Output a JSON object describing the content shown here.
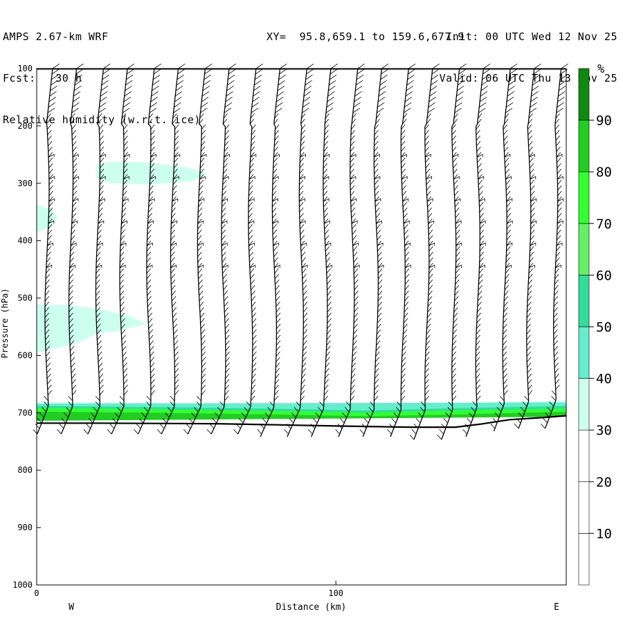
{
  "header": {
    "left": [
      "AMPS 2.67-km WRF",
      "Fcst:   30 h",
      "Relative humidity (w.r.t. ice)"
    ],
    "right": [
      "Init: 00 UTC Wed 12 Nov 25",
      "Valid: 06 UTC Thu 13 Nov 25"
    ],
    "xy": "XY=  95.8,659.1 to 159.6,677.9"
  },
  "chart_data": {
    "type": "heatmap",
    "title": "Relative humidity (w.r.t. ice)",
    "xlabel": "Distance (km)",
    "ylabel": "Pressure (hPa)",
    "xlim": [
      0,
      177
    ],
    "ylim": [
      1000,
      100
    ],
    "x_ticks": [
      0,
      100
    ],
    "y_ticks": [
      100,
      200,
      300,
      400,
      500,
      600,
      700,
      800,
      900,
      1000
    ],
    "x_end_labels": {
      "left": "W",
      "right": "E"
    },
    "colorbar": {
      "unit": "%",
      "levels": [
        0,
        10,
        20,
        30,
        40,
        50,
        60,
        70,
        80,
        90,
        100
      ],
      "tick_labels": [
        "10",
        "20",
        "30",
        "40",
        "50",
        "60",
        "70",
        "80",
        "90"
      ],
      "colors": [
        "#ffffff",
        "#ffffff",
        "#ffffff",
        "#ccffee",
        "#66eecc",
        "#33dd99",
        "#66ee66",
        "#33ff33",
        "#22cc22",
        "#118811"
      ]
    },
    "surface_pressure": [
      {
        "x": 0,
        "p": 718
      },
      {
        "x": 20,
        "p": 718
      },
      {
        "x": 60,
        "p": 719
      },
      {
        "x": 80,
        "p": 721
      },
      {
        "x": 100,
        "p": 723
      },
      {
        "x": 125,
        "p": 725
      },
      {
        "x": 140,
        "p": 725
      },
      {
        "x": 148,
        "p": 720
      },
      {
        "x": 158,
        "p": 712
      },
      {
        "x": 170,
        "p": 708
      },
      {
        "x": 177,
        "p": 705
      }
    ],
    "moist_regions": [
      {
        "rh": 35,
        "outline": [
          [
            20,
            268
          ],
          [
            25,
            262
          ],
          [
            38,
            264
          ],
          [
            50,
            272
          ],
          [
            57,
            282
          ],
          [
            52,
            296
          ],
          [
            38,
            302
          ],
          [
            25,
            300
          ],
          [
            20,
            290
          ]
        ]
      },
      {
        "rh": 35,
        "outline": [
          [
            0,
            338
          ],
          [
            5,
            345
          ],
          [
            7,
            360
          ],
          [
            4,
            378
          ],
          [
            0,
            385
          ]
        ]
      },
      {
        "rh": 35,
        "outline": [
          [
            0,
            512
          ],
          [
            10,
            512
          ],
          [
            22,
            520
          ],
          [
            30,
            530
          ],
          [
            37,
            545
          ],
          [
            26,
            558
          ],
          [
            20,
            562
          ],
          [
            14,
            578
          ],
          [
            3,
            592
          ],
          [
            0,
            595
          ]
        ]
      },
      {
        "rh": 35,
        "outline": [
          [
            0,
            681
          ],
          [
            40,
            683
          ],
          [
            80,
            686
          ],
          [
            110,
            688
          ],
          [
            140,
            683
          ],
          [
            177,
            679
          ],
          [
            177,
            703
          ],
          [
            0,
            705
          ]
        ]
      },
      {
        "rh": 45,
        "outline": [
          [
            0,
            684
          ],
          [
            177,
            682
          ],
          [
            177,
            704
          ],
          [
            0,
            707
          ]
        ]
      },
      {
        "rh": 55,
        "outline": [
          [
            0,
            688
          ],
          [
            40,
            690
          ],
          [
            80,
            693
          ],
          [
            110,
            696
          ],
          [
            140,
            692
          ],
          [
            177,
            688
          ],
          [
            177,
            705
          ],
          [
            0,
            709
          ]
        ]
      },
      {
        "rh": 75,
        "outline": [
          [
            0,
            692
          ],
          [
            40,
            694
          ],
          [
            80,
            697
          ],
          [
            110,
            700
          ],
          [
            140,
            696
          ],
          [
            177,
            693
          ],
          [
            177,
            706
          ],
          [
            0,
            712
          ]
        ]
      },
      {
        "rh": 85,
        "outline": [
          [
            0,
            698
          ],
          [
            40,
            700
          ],
          [
            80,
            703
          ],
          [
            110,
            706
          ],
          [
            140,
            703
          ],
          [
            177,
            698
          ],
          [
            177,
            707
          ],
          [
            0,
            714
          ]
        ]
      }
    ],
    "wind_profile_x": [
      3,
      11,
      20,
      28,
      37,
      45,
      54,
      62,
      71,
      79,
      88,
      96,
      105,
      113,
      122,
      130,
      139,
      147,
      156,
      164,
      173
    ]
  }
}
